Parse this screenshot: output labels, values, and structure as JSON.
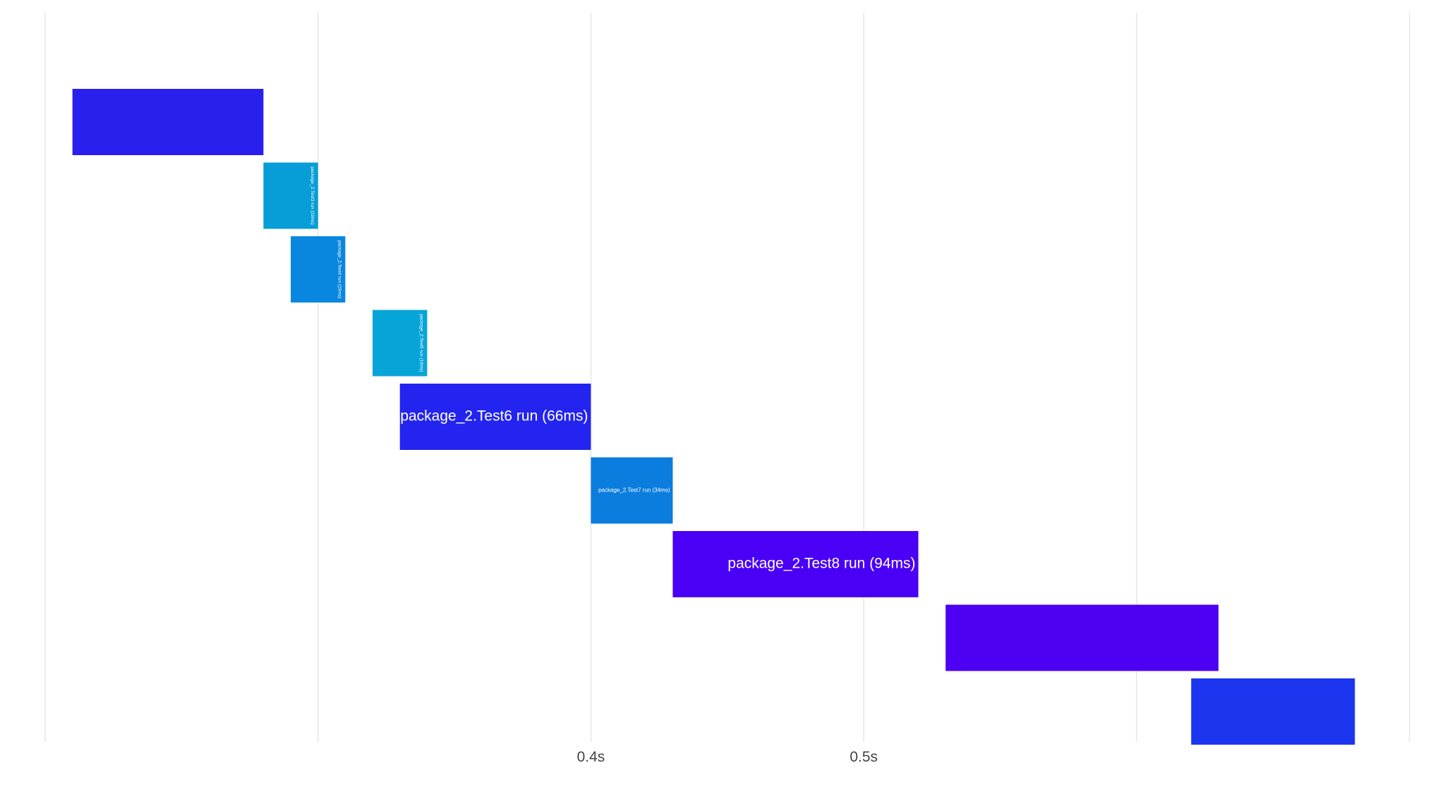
{
  "chart_data": {
    "type": "bar",
    "orientation": "horizontal-timeline",
    "x_unit": "s",
    "xlim": [
      0.2,
      0.705
    ],
    "x_ticks": [
      {
        "value": 0.2,
        "label": ""
      },
      {
        "value": 0.3,
        "label": ""
      },
      {
        "value": 0.4,
        "label": "0.4s"
      },
      {
        "value": 0.5,
        "label": "0.5s"
      },
      {
        "value": 0.6,
        "label": ""
      },
      {
        "value": 0.7,
        "label": ""
      }
    ],
    "grid": true,
    "bars": [
      {
        "label": "",
        "start": 0.21,
        "end": 0.28,
        "color": "#2a20ee",
        "label_orientation": "horizontal"
      },
      {
        "label": "package_2.Test3 run (19ms)",
        "start": 0.28,
        "end": 0.3,
        "color": "#079dd6",
        "label_orientation": "vertical"
      },
      {
        "label": "package_2.Test4 run (19ms)",
        "start": 0.29,
        "end": 0.31,
        "color": "#0987df",
        "label_orientation": "vertical"
      },
      {
        "label": "package_2.Test5 run (19ms)",
        "start": 0.32,
        "end": 0.34,
        "color": "#07a4d8",
        "label_orientation": "vertical"
      },
      {
        "label": "package_2.Test6 run (66ms)",
        "start": 0.33,
        "end": 0.4,
        "color": "#2424f0",
        "label_orientation": "horizontal"
      },
      {
        "label": "package_2.Test7 run (34ms)",
        "start": 0.4,
        "end": 0.43,
        "color": "#0b7ddf",
        "label_orientation": "horizontal"
      },
      {
        "label": "package_2.Test8 run (94ms)",
        "start": 0.43,
        "end": 0.52,
        "color": "#4a00f5",
        "label_orientation": "horizontal"
      },
      {
        "label": "",
        "start": 0.53,
        "end": 0.63,
        "color": "#4d00f2",
        "label_orientation": "horizontal"
      },
      {
        "label": "",
        "start": 0.62,
        "end": 0.68,
        "color": "#1c36f0",
        "label_orientation": "horizontal"
      }
    ]
  }
}
